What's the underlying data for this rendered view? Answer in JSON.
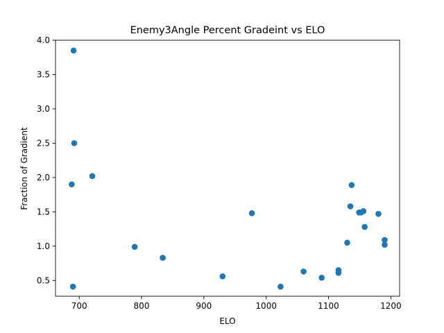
{
  "chart_data": {
    "type": "scatter",
    "title": "Enemy3Angle Percent Gradeint vs ELO",
    "xlabel": "ELO",
    "ylabel": "Fraction of Gradient",
    "xlim": [
      662,
      1214
    ],
    "ylim": [
      0.27,
      4.0
    ],
    "xticks": [
      700,
      800,
      900,
      1000,
      1100,
      1200
    ],
    "yticks": [
      0.5,
      1.0,
      1.5,
      2.0,
      2.5,
      3.0,
      3.5,
      4.0
    ],
    "grid": false,
    "marker_color": "#1f77b4",
    "points": [
      {
        "x": 691,
        "y": 3.85
      },
      {
        "x": 692,
        "y": 2.5
      },
      {
        "x": 721,
        "y": 2.02
      },
      {
        "x": 688,
        "y": 1.9
      },
      {
        "x": 690,
        "y": 0.41
      },
      {
        "x": 789,
        "y": 0.99
      },
      {
        "x": 834,
        "y": 0.83
      },
      {
        "x": 930,
        "y": 0.56
      },
      {
        "x": 977,
        "y": 1.48
      },
      {
        "x": 1023,
        "y": 0.41
      },
      {
        "x": 1060,
        "y": 0.63
      },
      {
        "x": 1089,
        "y": 0.54
      },
      {
        "x": 1116,
        "y": 0.65
      },
      {
        "x": 1116,
        "y": 0.61
      },
      {
        "x": 1130,
        "y": 1.05
      },
      {
        "x": 1135,
        "y": 1.58
      },
      {
        "x": 1137,
        "y": 1.89
      },
      {
        "x": 1149,
        "y": 1.49
      },
      {
        "x": 1152,
        "y": 1.49
      },
      {
        "x": 1156,
        "y": 1.51
      },
      {
        "x": 1158,
        "y": 1.28
      },
      {
        "x": 1180,
        "y": 1.47
      },
      {
        "x": 1190,
        "y": 1.09
      },
      {
        "x": 1190,
        "y": 1.02
      }
    ]
  }
}
